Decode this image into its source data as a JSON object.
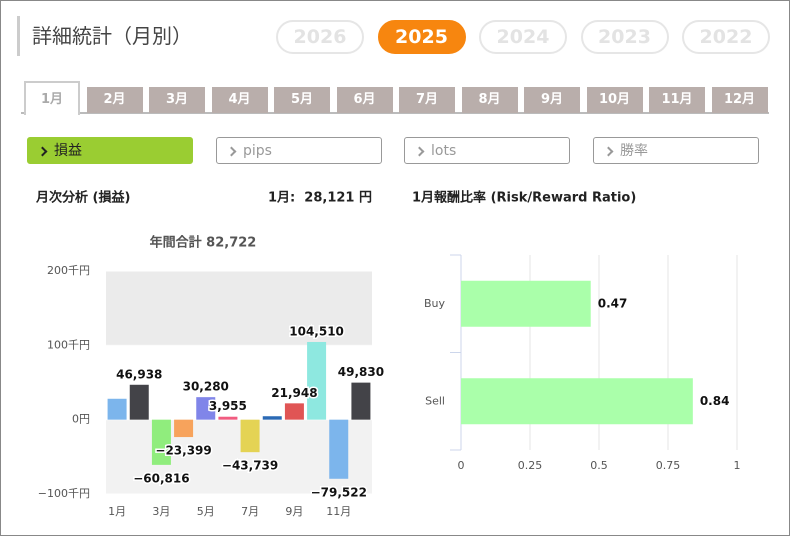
{
  "header": {
    "title": "詳細統計（月別）"
  },
  "years": {
    "items": [
      "2026",
      "2025",
      "2024",
      "2023",
      "2022"
    ],
    "active": 1
  },
  "months": {
    "items": [
      "1月",
      "2月",
      "3月",
      "4月",
      "5月",
      "6月",
      "7月",
      "8月",
      "9月",
      "10月",
      "11月",
      "12月"
    ],
    "active": 0
  },
  "filters": {
    "items": [
      "損益",
      "pips",
      "lots",
      "勝率"
    ],
    "active": 0
  },
  "chart_data": [
    {
      "type": "bar",
      "title": "月次分析 (損益)",
      "summary": "1月:  28,121 円",
      "subtitle": "年間合計 82,722",
      "categories": [
        "1月",
        null,
        "3月",
        null,
        "5月",
        null,
        "7月",
        null,
        "9月",
        null,
        "11月",
        null
      ],
      "values": [
        28121,
        46938,
        -60816,
        -23399,
        30280,
        3955,
        -43739,
        4616,
        21948,
        104510,
        -79522,
        49830
      ],
      "value_labels": [
        null,
        "46,938",
        "−60,816",
        "−23,399",
        "30,280",
        "3,955",
        "−43,739",
        null,
        "21,948",
        "104,510",
        "−79,522",
        "49,830"
      ],
      "colors": [
        "#7cb5ec",
        "#434348",
        "#90ed7d",
        "#f7a35c",
        "#8085e9",
        "#f15c80",
        "#e4d354",
        "#2b6ab5",
        "#e05555",
        "#8ee8e0",
        "#7cb5ec",
        "#434348"
      ],
      "ylim": [
        -100000,
        200000
      ],
      "yticks": [
        {
          "value": 200000,
          "label": "200千円"
        },
        {
          "value": 100000,
          "label": "100千円"
        },
        {
          "value": 0,
          "label": "0円"
        },
        {
          "value": -100000,
          "label": "−100千円"
        }
      ]
    },
    {
      "type": "hbar",
      "title": "1月報酬比率 (Risk/Reward Ratio)",
      "categories": [
        "Buy",
        "Sell"
      ],
      "values": [
        0.47,
        0.84
      ],
      "color": "#aaffaa",
      "xlim": [
        0,
        1
      ],
      "xticks": [
        0,
        0.25,
        0.5,
        0.75,
        1
      ],
      "grid": true
    }
  ]
}
